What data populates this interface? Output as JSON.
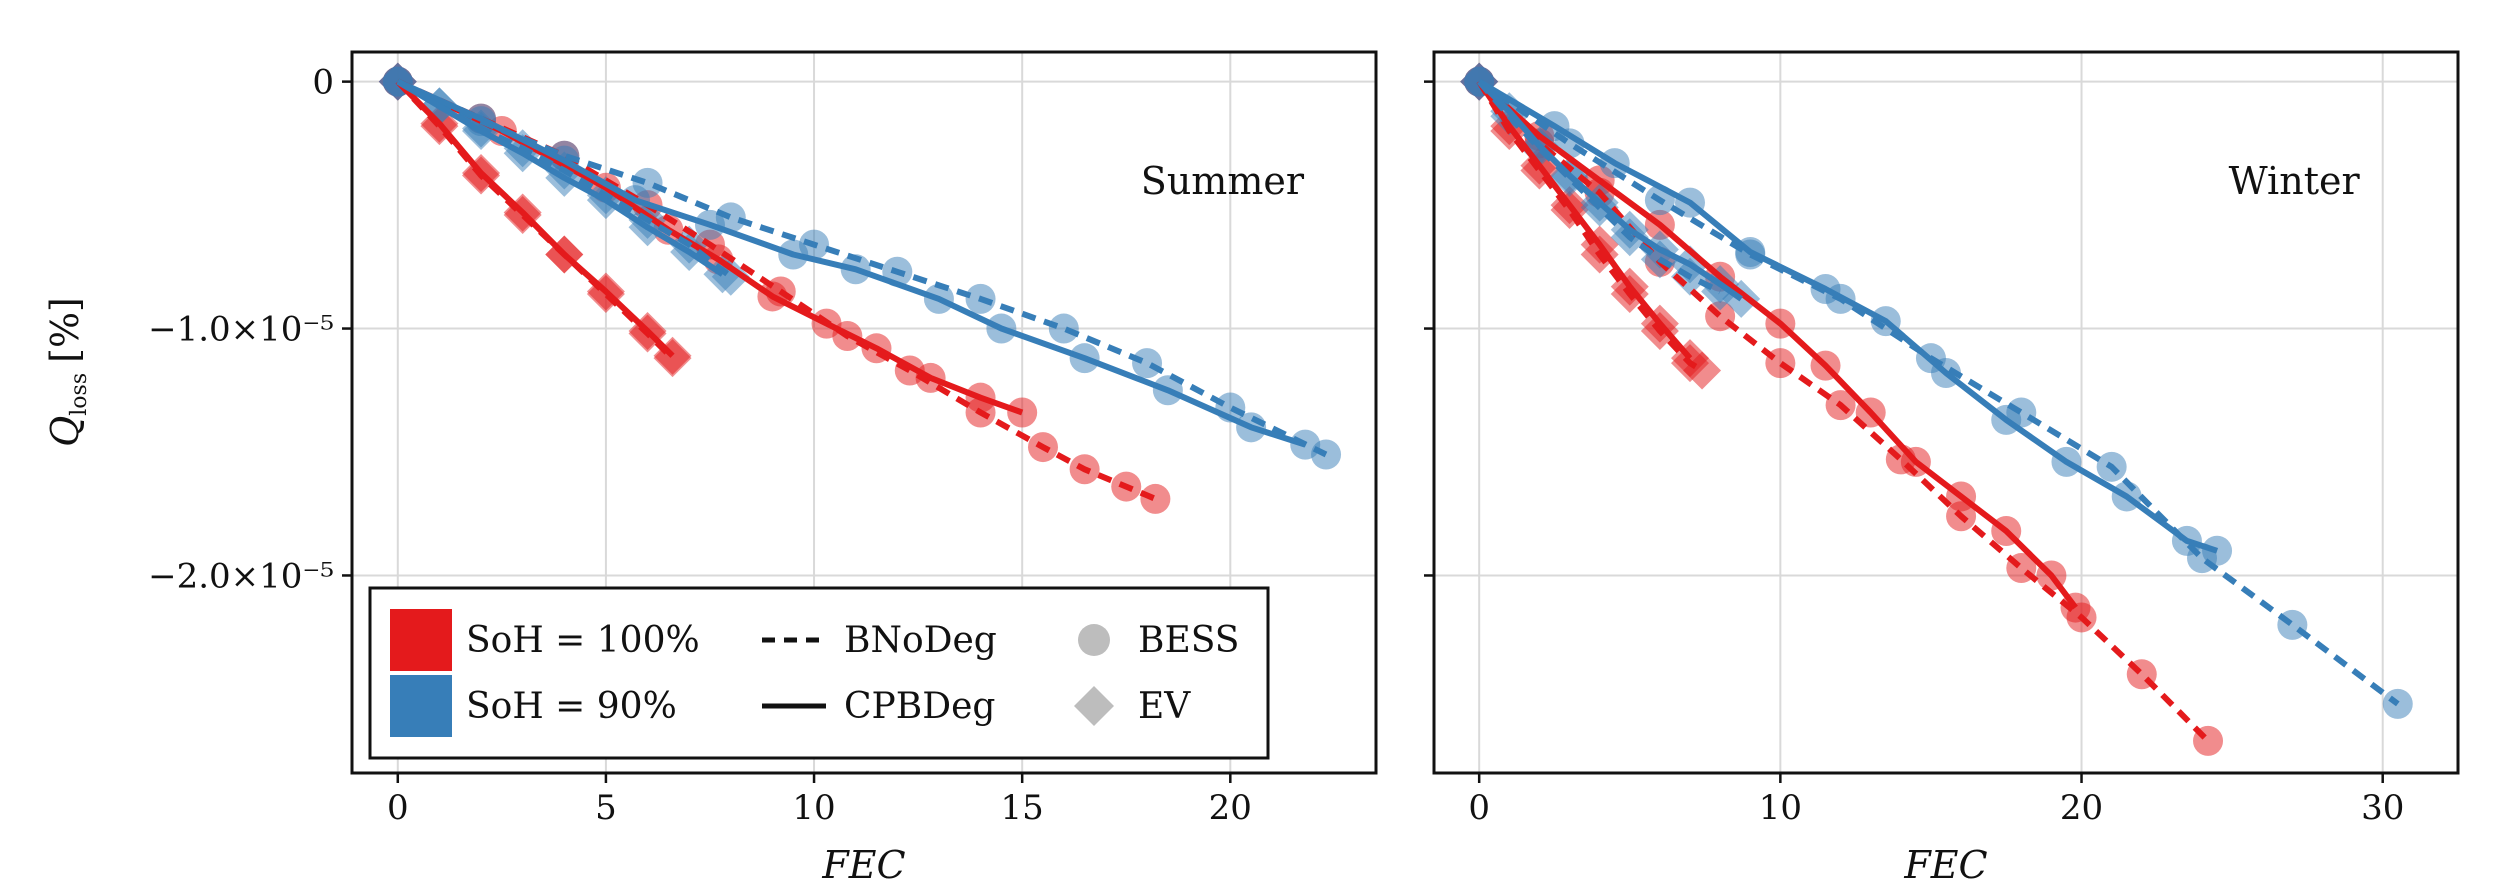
{
  "chart_data": [
    {
      "type": "line",
      "title": "Summer",
      "xlabel": "FEC",
      "ylabel": "Q_loss [%]",
      "ylabel_main": "Q",
      "ylabel_sub": "loss",
      "ylabel_unit": "[%]",
      "xlim": [
        -1.1,
        23.5
      ],
      "ylim": [
        -2.8e-05,
        1.2e-06
      ],
      "xticks": [
        0,
        5,
        10,
        15,
        20
      ],
      "xtick_labels": [
        "0",
        "5",
        "10",
        "15",
        "20"
      ],
      "yticks": [
        0,
        -1e-05,
        -2e-05
      ],
      "ytick_labels": [
        "0",
        "−1.0×10⁻⁵",
        "−2.0×10⁻⁵"
      ],
      "grid": true,
      "series": [
        {
          "name": "SoH = 100% BNoDeg BESS",
          "color": "#e41a1c",
          "line": "dashed",
          "marker": "circle",
          "x": [
            0,
            2.0,
            4.0,
            6.0,
            7.5,
            9.2,
            10.8,
            12.3,
            14.0,
            15.5,
            16.5,
            17.5,
            18.2
          ],
          "y": [
            0,
            -1.5e-06,
            -3e-06,
            -5e-06,
            -6.6e-06,
            -8.5e-06,
            -1.03e-05,
            -1.17e-05,
            -1.34e-05,
            -1.48e-05,
            -1.57e-05,
            -1.64e-05,
            -1.69e-05
          ]
        },
        {
          "name": "SoH = 100% CPBDeg BESS",
          "color": "#e41a1c",
          "line": "solid",
          "marker": "circle",
          "x": [
            0,
            2.5,
            5.0,
            6.5,
            7.7,
            9.0,
            10.3,
            11.5,
            12.8,
            14.0,
            15.0
          ],
          "y": [
            0,
            -2e-06,
            -4.3e-06,
            -6e-06,
            -7.2e-06,
            -8.7e-06,
            -9.8e-06,
            -1.08e-05,
            -1.2e-05,
            -1.28e-05,
            -1.34e-05
          ]
        },
        {
          "name": "SoH = 100% BNoDeg EV",
          "color": "#e41a1c",
          "line": "dashed",
          "marker": "diamond",
          "x": [
            0,
            1.0,
            2.0,
            3.0,
            4.0,
            5.0,
            6.0,
            6.6
          ],
          "y": [
            0,
            -1.8e-06,
            -3.8e-06,
            -5.4e-06,
            -7e-06,
            -8.6e-06,
            -1.02e-05,
            -1.12e-05
          ]
        },
        {
          "name": "SoH = 100% CPBDeg EV",
          "color": "#e41a1c",
          "line": "solid",
          "marker": "diamond",
          "x": [
            0,
            1.0,
            2.0,
            3.0,
            4.0,
            5.0,
            6.0,
            6.6
          ],
          "y": [
            0,
            -1.7e-06,
            -3.7e-06,
            -5.3e-06,
            -7e-06,
            -8.5e-06,
            -1.01e-05,
            -1.11e-05
          ]
        },
        {
          "name": "SoH = 90% BNoDeg BESS",
          "color": "#377eb8",
          "line": "dashed",
          "marker": "circle",
          "x": [
            0,
            2.0,
            4.0,
            6.0,
            8.0,
            10.0,
            12.0,
            14.0,
            16.0,
            18.0,
            20.0,
            22.3
          ],
          "y": [
            0,
            -1.6e-06,
            -3e-06,
            -4.1e-06,
            -5.5e-06,
            -6.6e-06,
            -7.7e-06,
            -8.8e-06,
            -1e-05,
            -1.14e-05,
            -1.32e-05,
            -1.51e-05
          ]
        },
        {
          "name": "SoH = 90% CPBDeg BESS",
          "color": "#377eb8",
          "line": "solid",
          "marker": "circle",
          "x": [
            0,
            2.0,
            4.0,
            5.7,
            7.5,
            9.5,
            11.0,
            13.0,
            14.5,
            16.5,
            18.5,
            20.5,
            21.8
          ],
          "y": [
            0,
            -1.5e-06,
            -3.2e-06,
            -4.8e-06,
            -5.8e-06,
            -7e-06,
            -7.6e-06,
            -8.8e-06,
            -1e-05,
            -1.12e-05,
            -1.25e-05,
            -1.4e-05,
            -1.47e-05
          ]
        },
        {
          "name": "SoH = 90% BNoDeg EV",
          "color": "#377eb8",
          "line": "dashed",
          "marker": "diamond",
          "x": [
            0,
            1.0,
            2.0,
            3.0,
            4.0,
            5.0,
            6.0,
            7.0,
            8.0
          ],
          "y": [
            0,
            -1e-06,
            -1.9e-06,
            -2.7e-06,
            -3.6e-06,
            -4.6e-06,
            -5.6e-06,
            -6.6e-06,
            -7.9e-06
          ]
        },
        {
          "name": "SoH = 90% CPBDeg EV",
          "color": "#377eb8",
          "line": "solid",
          "marker": "diamond",
          "x": [
            0,
            1.0,
            2.0,
            3.0,
            4.0,
            5.0,
            6.0,
            7.0,
            7.8
          ],
          "y": [
            0,
            -1e-06,
            -2e-06,
            -2.9e-06,
            -3.9e-06,
            -4.8e-06,
            -5.9e-06,
            -6.9e-06,
            -7.8e-06
          ]
        }
      ]
    },
    {
      "type": "line",
      "title": "Winter",
      "xlabel": "FEC",
      "ylabel": "",
      "xlim": [
        -1.5,
        32.5
      ],
      "ylim": [
        -2.8e-05,
        1.2e-06
      ],
      "xticks": [
        0,
        10,
        20,
        30
      ],
      "xtick_labels": [
        "0",
        "10",
        "20",
        "30"
      ],
      "yticks": [
        0,
        -1e-05,
        -2e-05
      ],
      "grid": true,
      "series": [
        {
          "name": "SoH = 100% BNoDeg BESS",
          "color": "#e41a1c",
          "line": "dashed",
          "marker": "circle",
          "x": [
            0,
            2.0,
            4.0,
            6.0,
            8.0,
            10.0,
            12.0,
            14.0,
            16.0,
            18.0,
            20.0,
            22.0,
            24.2
          ],
          "y": [
            0,
            -2.5e-06,
            -4.5e-06,
            -7.3e-06,
            -9.5e-06,
            -1.14e-05,
            -1.31e-05,
            -1.53e-05,
            -1.76e-05,
            -1.97e-05,
            -2.17e-05,
            -2.4e-05,
            -2.67e-05
          ]
        },
        {
          "name": "SoH = 100% CPBDeg BESS",
          "color": "#e41a1c",
          "line": "solid",
          "marker": "circle",
          "x": [
            0,
            2.0,
            4.0,
            6.0,
            8.0,
            10.0,
            11.5,
            13.0,
            14.5,
            16.0,
            17.5,
            19.0,
            19.8
          ],
          "y": [
            0,
            -2.2e-06,
            -4e-06,
            -5.8e-06,
            -7.9e-06,
            -9.8e-06,
            -1.15e-05,
            -1.34e-05,
            -1.54e-05,
            -1.68e-05,
            -1.82e-05,
            -2e-05,
            -2.13e-05
          ]
        },
        {
          "name": "SoH = 100% BNoDeg EV",
          "color": "#e41a1c",
          "line": "dashed",
          "marker": "diamond",
          "x": [
            0,
            1.0,
            2.0,
            3.0,
            4.0,
            5.0,
            6.0,
            7.0,
            7.4
          ],
          "y": [
            0,
            -2e-06,
            -3.6e-06,
            -5.2e-06,
            -7e-06,
            -8.6e-06,
            -1.01e-05,
            -1.14e-05,
            -1.17e-05
          ]
        },
        {
          "name": "SoH = 100% CPBDeg EV",
          "color": "#e41a1c",
          "line": "solid",
          "marker": "diamond",
          "x": [
            0,
            1.0,
            2.0,
            3.0,
            4.0,
            5.0,
            6.0,
            7.0
          ],
          "y": [
            0,
            -1.8e-06,
            -3.4e-06,
            -5e-06,
            -6.6e-06,
            -8.3e-06,
            -9.8e-06,
            -1.12e-05
          ]
        },
        {
          "name": "SoH = 90% BNoDeg BESS",
          "color": "#377eb8",
          "line": "dashed",
          "marker": "circle",
          "x": [
            0,
            3.0,
            6.0,
            9.0,
            12.0,
            15.0,
            18.0,
            21.0,
            24.0,
            27.0,
            30.5
          ],
          "y": [
            0,
            -2.5e-06,
            -4.8e-06,
            -7e-06,
            -8.8e-06,
            -1.12e-05,
            -1.34e-05,
            -1.56e-05,
            -1.93e-05,
            -2.2e-05,
            -2.52e-05
          ]
        },
        {
          "name": "SoH = 90% CPBDeg BESS",
          "color": "#377eb8",
          "line": "solid",
          "marker": "circle",
          "x": [
            0,
            2.5,
            4.5,
            7.0,
            9.0,
            11.5,
            13.5,
            15.5,
            17.5,
            19.5,
            21.5,
            23.5,
            24.5
          ],
          "y": [
            0,
            -1.8e-06,
            -3.3e-06,
            -4.9e-06,
            -6.9e-06,
            -8.4e-06,
            -9.7e-06,
            -1.18e-05,
            -1.37e-05,
            -1.54e-05,
            -1.68e-05,
            -1.86e-05,
            -1.9e-05
          ]
        },
        {
          "name": "SoH = 90% BNoDeg EV",
          "color": "#377eb8",
          "line": "dashed",
          "marker": "diamond",
          "x": [
            0,
            1.0,
            2.0,
            3.0,
            4.0,
            5.0,
            6.0,
            7.0,
            8.0
          ],
          "y": [
            0,
            -1.4e-06,
            -2.7e-06,
            -3.9e-06,
            -5.1e-06,
            -6.3e-06,
            -7.2e-06,
            -7.9e-06,
            -8.5e-06
          ]
        },
        {
          "name": "SoH = 90% CPBDeg EV",
          "color": "#377eb8",
          "line": "solid",
          "marker": "diamond",
          "x": [
            0,
            1.0,
            2.0,
            3.0,
            4.0,
            5.0,
            6.0,
            7.0,
            8.0,
            8.7
          ],
          "y": [
            0,
            -1.2e-06,
            -2.6e-06,
            -3.8e-06,
            -4.9e-06,
            -6e-06,
            -6.8e-06,
            -7.4e-06,
            -8.2e-06,
            -8.8e-06
          ]
        }
      ]
    }
  ],
  "legend": {
    "entries": [
      {
        "label": "SoH = 100%",
        "kind": "patch",
        "color": "#e41a1c"
      },
      {
        "label": "SoH = 90%",
        "kind": "patch",
        "color": "#377eb8"
      },
      {
        "label": "BNoDeg",
        "kind": "dashed"
      },
      {
        "label": "CPBDeg",
        "kind": "solid"
      },
      {
        "label": "BESS",
        "kind": "circle",
        "color": "#bdbdbd"
      },
      {
        "label": "EV",
        "kind": "diamond",
        "color": "#bdbdbd"
      }
    ]
  }
}
